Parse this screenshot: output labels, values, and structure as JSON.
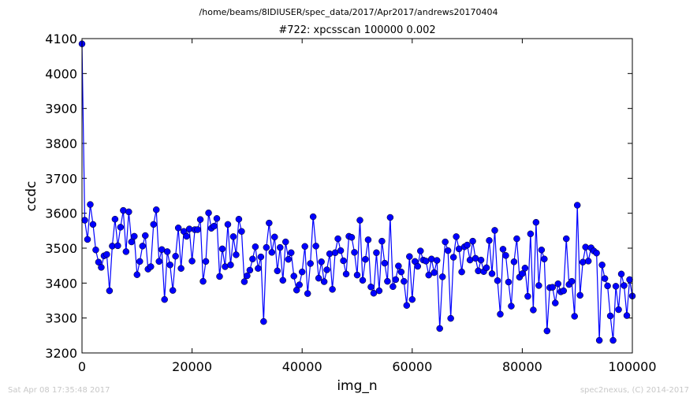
{
  "chart_data": {
    "type": "line",
    "suptitle": "/home/beams/8IDIUSER/spec_data/2017/Apr2017/andrews20170404",
    "title": "#722: xpcsscan 100000 0.002",
    "xlabel": "img_n",
    "ylabel": "ccdc",
    "xlim": [
      0,
      100000
    ],
    "ylim": [
      3200,
      4100
    ],
    "xticks": [
      0,
      20000,
      40000,
      60000,
      80000,
      100000
    ],
    "xtick_labels": [
      "0",
      "20000",
      "40000",
      "60000",
      "80000",
      "100000"
    ],
    "yticks": [
      3200,
      3300,
      3400,
      3500,
      3600,
      3700,
      3800,
      3900,
      4000,
      4100
    ],
    "ytick_labels": [
      "3200",
      "3300",
      "3400",
      "3500",
      "3600",
      "3700",
      "3800",
      "3900",
      "4000",
      "4100"
    ],
    "grid": false,
    "series": [
      {
        "color": "#0000ff",
        "marker": "circle",
        "x_start": 0,
        "x_step": 500,
        "values": [
          4085,
          3580,
          3525,
          3625,
          3568,
          3495,
          3460,
          3445,
          3478,
          3482,
          3378,
          3506,
          3583,
          3507,
          3560,
          3608,
          3490,
          3604,
          3518,
          3534,
          3424,
          3462,
          3506,
          3536,
          3440,
          3447,
          3568,
          3610,
          3462,
          3496,
          3353,
          3490,
          3452,
          3379,
          3477,
          3558,
          3442,
          3548,
          3534,
          3555,
          3463,
          3553,
          3553,
          3582,
          3405,
          3462,
          3601,
          3557,
          3563,
          3585,
          3419,
          3498,
          3447,
          3568,
          3452,
          3533,
          3481,
          3583,
          3548,
          3404,
          3421,
          3437,
          3469,
          3504,
          3442,
          3475,
          3290,
          3502,
          3572,
          3488,
          3532,
          3435,
          3502,
          3408,
          3518,
          3468,
          3487,
          3420,
          3380,
          3395,
          3432,
          3505,
          3370,
          3456,
          3590,
          3506,
          3414,
          3461,
          3404,
          3438,
          3484,
          3382,
          3487,
          3527,
          3493,
          3464,
          3426,
          3534,
          3531,
          3488,
          3423,
          3580,
          3408,
          3468,
          3524,
          3389,
          3371,
          3487,
          3378,
          3520,
          3457,
          3405,
          3588,
          3390,
          3410,
          3449,
          3432,
          3405,
          3336,
          3476,
          3353,
          3462,
          3448,
          3492,
          3466,
          3463,
          3423,
          3469,
          3430,
          3465,
          3270,
          3418,
          3518,
          3493,
          3299,
          3474,
          3533,
          3498,
          3432,
          3504,
          3509,
          3466,
          3520,
          3471,
          3435,
          3466,
          3433,
          3444,
          3522,
          3427,
          3551,
          3407,
          3311,
          3497,
          3479,
          3403,
          3334,
          3461,
          3527,
          3417,
          3427,
          3443,
          3362,
          3541,
          3323,
          3574,
          3393,
          3495,
          3469,
          3263,
          3387,
          3388,
          3343,
          3398,
          3375,
          3378,
          3527,
          3396,
          3405,
          3305,
          3623,
          3365,
          3460,
          3503,
          3463,
          3501,
          3492,
          3486,
          3236,
          3452,
          3413,
          3392,
          3306,
          3236,
          3391,
          3324,
          3426,
          3393,
          3307,
          3410,
          3363
        ]
      }
    ]
  },
  "footer": {
    "left": "Sat Apr 08 17:35:48 2017",
    "right": "spec2nexus, (C) 2014-2017"
  }
}
